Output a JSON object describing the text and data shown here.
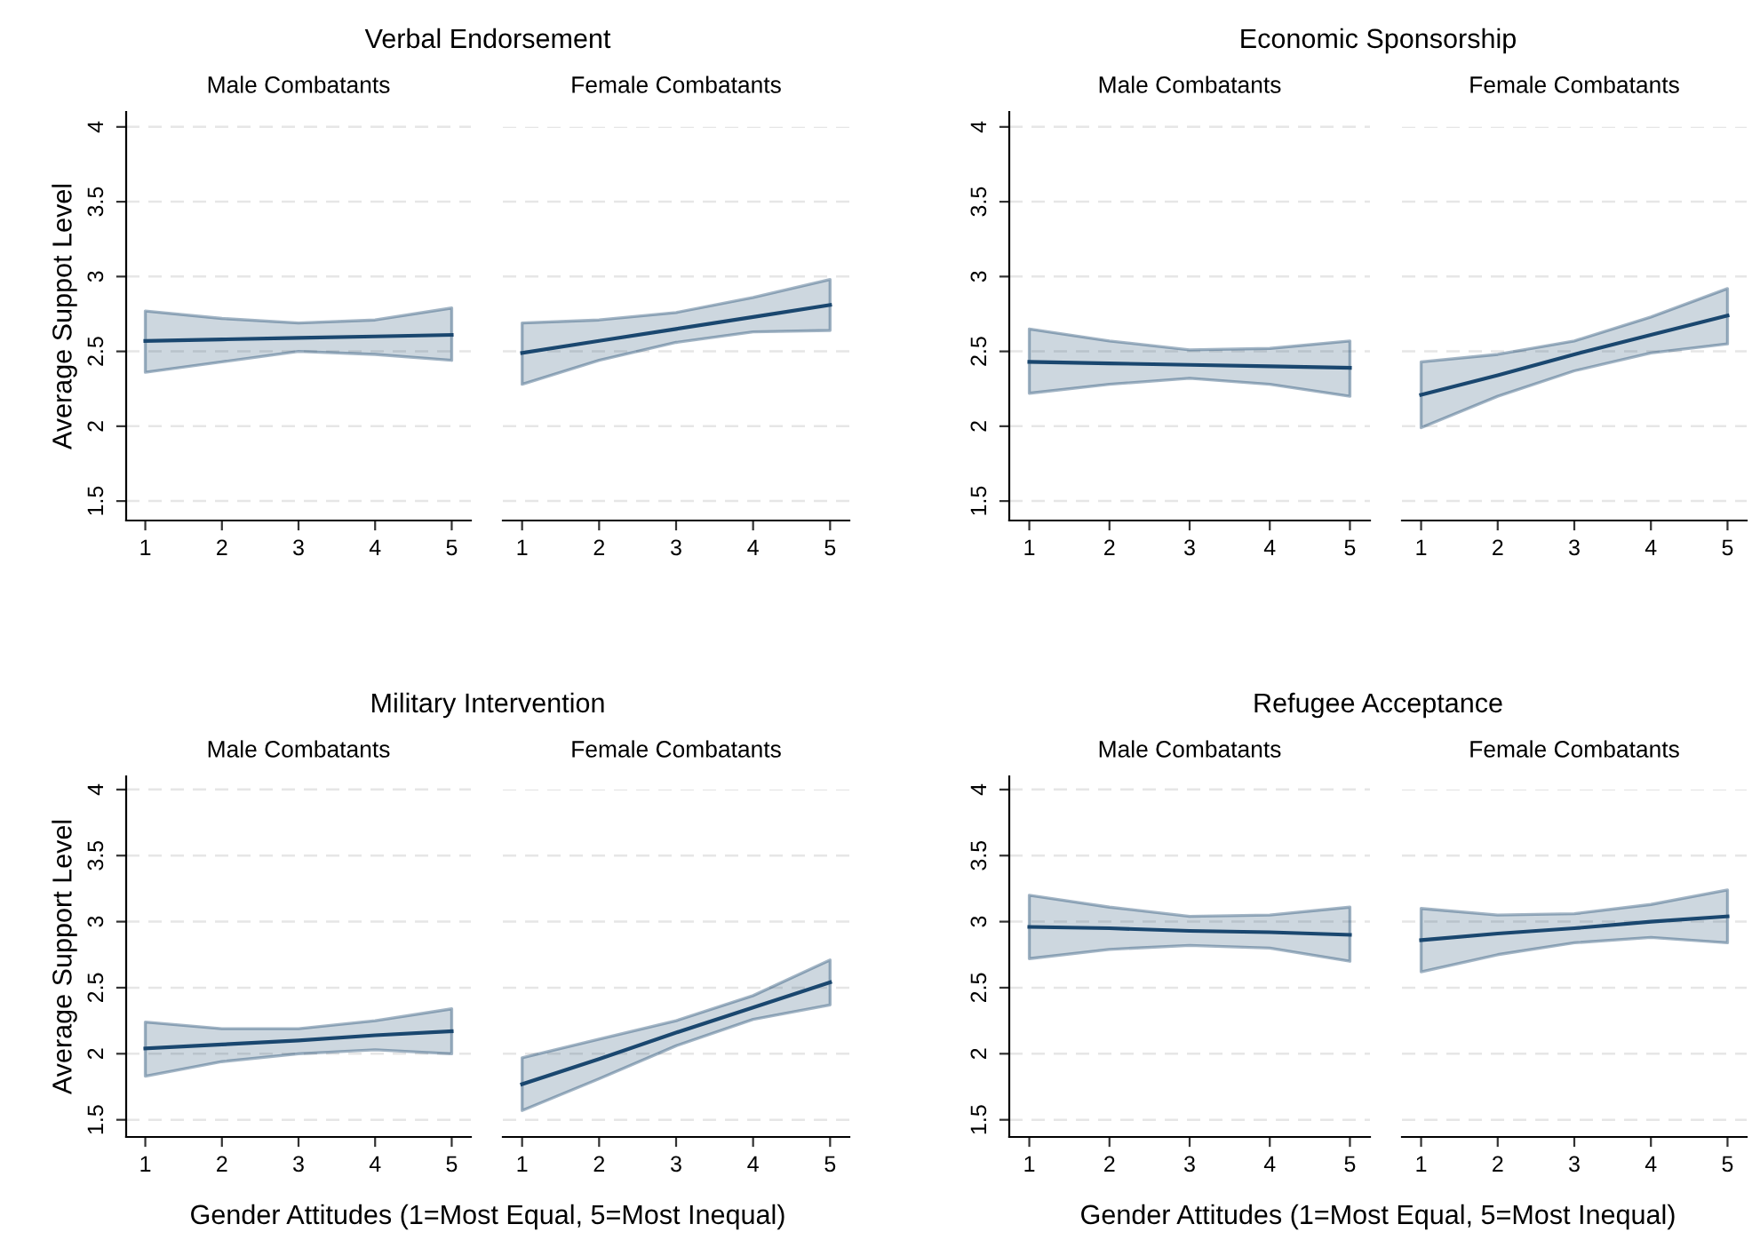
{
  "chart_data": [
    {
      "type": "line",
      "title": "Verbal Endorsement",
      "subtitle": "Male Combatants",
      "ylabel": "Average Suppot Level",
      "x": [
        1,
        2,
        3,
        4,
        5
      ],
      "xlim": [
        0.75,
        5.25
      ],
      "xticks": [
        1,
        2,
        3,
        4,
        5
      ],
      "ylim": [
        1.37,
        4.1
      ],
      "yticks": [
        1.5,
        2,
        2.5,
        3,
        3.5,
        4
      ],
      "grid": "y",
      "series": [
        {
          "color": "#1a476f",
          "values": [
            2.57,
            2.58,
            2.59,
            2.6,
            2.61
          ],
          "lower": [
            2.36,
            2.43,
            2.5,
            2.48,
            2.44
          ],
          "upper": [
            2.77,
            2.72,
            2.69,
            2.71,
            2.79
          ]
        }
      ]
    },
    {
      "type": "line",
      "subtitle": "Female Combatants",
      "x": [
        1,
        2,
        3,
        4,
        5
      ],
      "xlim": [
        0.75,
        5.25
      ],
      "xticks": [
        1,
        2,
        3,
        4,
        5
      ],
      "ylim": [
        1.37,
        4
      ],
      "yticks": [
        1.5,
        2,
        2.5,
        3,
        3.5,
        4
      ],
      "grid": "y",
      "tick_labels": "x",
      "series": [
        {
          "color": "#1a476f",
          "values": [
            2.49,
            2.57,
            2.65,
            2.73,
            2.81
          ],
          "lower": [
            2.28,
            2.44,
            2.56,
            2.63,
            2.64
          ],
          "upper": [
            2.69,
            2.71,
            2.76,
            2.86,
            2.98
          ]
        }
      ]
    },
    {
      "type": "line",
      "title": "Economic Sponsorship",
      "subtitle": "Male Combatants",
      "x": [
        1,
        2,
        3,
        4,
        5
      ],
      "xlim": [
        0.75,
        5.25
      ],
      "xticks": [
        1,
        2,
        3,
        4,
        5
      ],
      "ylim": [
        1.37,
        4.1
      ],
      "yticks": [
        1.5,
        2,
        2.5,
        3,
        3.5,
        4
      ],
      "grid": "y",
      "series": [
        {
          "color": "#1a476f",
          "values": [
            2.43,
            2.42,
            2.41,
            2.4,
            2.39
          ],
          "lower": [
            2.22,
            2.28,
            2.32,
            2.28,
            2.2
          ],
          "upper": [
            2.65,
            2.57,
            2.51,
            2.52,
            2.57
          ]
        }
      ]
    },
    {
      "type": "line",
      "subtitle": "Female Combatants",
      "x": [
        1,
        2,
        3,
        4,
        5
      ],
      "xlim": [
        0.75,
        5.25
      ],
      "xticks": [
        1,
        2,
        3,
        4,
        5
      ],
      "ylim": [
        1.37,
        4
      ],
      "yticks": [
        1.5,
        2,
        2.5,
        3,
        3.5,
        4
      ],
      "grid": "y",
      "tick_labels": "x",
      "series": [
        {
          "color": "#1a476f",
          "values": [
            2.21,
            2.34,
            2.48,
            2.61,
            2.74
          ],
          "lower": [
            1.99,
            2.2,
            2.37,
            2.49,
            2.55
          ],
          "upper": [
            2.43,
            2.48,
            2.57,
            2.73,
            2.92
          ]
        }
      ]
    },
    {
      "type": "line",
      "title": "Military Intervention",
      "subtitle": "Male Combatants",
      "ylabel": "Average Support Level",
      "xlabel": "Gender Attitudes (1=Most Equal, 5=Most Inequal)",
      "x": [
        1,
        2,
        3,
        4,
        5
      ],
      "xlim": [
        0.75,
        5.25
      ],
      "xticks": [
        1,
        2,
        3,
        4,
        5
      ],
      "ylim": [
        1.37,
        4.1
      ],
      "yticks": [
        1.5,
        2,
        2.5,
        3,
        3.5,
        4
      ],
      "grid": "y",
      "series": [
        {
          "color": "#1a476f",
          "values": [
            2.04,
            2.07,
            2.1,
            2.14,
            2.17
          ],
          "lower": [
            1.83,
            1.94,
            2.0,
            2.03,
            2.0
          ],
          "upper": [
            2.24,
            2.19,
            2.19,
            2.25,
            2.34
          ]
        }
      ]
    },
    {
      "type": "line",
      "subtitle": "Female Combatants",
      "x": [
        1,
        2,
        3,
        4,
        5
      ],
      "xlim": [
        0.75,
        5.25
      ],
      "xticks": [
        1,
        2,
        3,
        4,
        5
      ],
      "ylim": [
        1.37,
        4
      ],
      "yticks": [
        1.5,
        2,
        2.5,
        3,
        3.5,
        4
      ],
      "grid": "y",
      "tick_labels": "x",
      "series": [
        {
          "color": "#1a476f",
          "values": [
            1.77,
            1.96,
            2.16,
            2.35,
            2.54
          ],
          "lower": [
            1.57,
            1.81,
            2.06,
            2.26,
            2.37
          ],
          "upper": [
            1.97,
            2.11,
            2.25,
            2.44,
            2.71
          ]
        }
      ]
    },
    {
      "type": "line",
      "title": "Refugee Acceptance",
      "subtitle": "Male Combatants",
      "xlabel": "Gender Attitudes (1=Most Equal, 5=Most Inequal)",
      "x": [
        1,
        2,
        3,
        4,
        5
      ],
      "xlim": [
        0.75,
        5.25
      ],
      "xticks": [
        1,
        2,
        3,
        4,
        5
      ],
      "ylim": [
        1.37,
        4.1
      ],
      "yticks": [
        1.5,
        2,
        2.5,
        3,
        3.5,
        4
      ],
      "grid": "y",
      "series": [
        {
          "color": "#1a476f",
          "values": [
            2.96,
            2.95,
            2.93,
            2.92,
            2.9
          ],
          "lower": [
            2.72,
            2.79,
            2.82,
            2.8,
            2.7
          ],
          "upper": [
            3.2,
            3.11,
            3.04,
            3.05,
            3.11
          ]
        }
      ]
    },
    {
      "type": "line",
      "subtitle": "Female Combatants",
      "x": [
        1,
        2,
        3,
        4,
        5
      ],
      "xlim": [
        0.75,
        5.25
      ],
      "xticks": [
        1,
        2,
        3,
        4,
        5
      ],
      "ylim": [
        1.37,
        4
      ],
      "yticks": [
        1.5,
        2,
        2.5,
        3,
        3.5,
        4
      ],
      "grid": "y",
      "tick_labels": "x",
      "series": [
        {
          "color": "#1a476f",
          "values": [
            2.86,
            2.91,
            2.95,
            3.0,
            3.04
          ],
          "lower": [
            2.62,
            2.75,
            2.84,
            2.88,
            2.84
          ],
          "upper": [
            3.1,
            3.05,
            3.06,
            3.13,
            3.24
          ]
        }
      ]
    }
  ]
}
